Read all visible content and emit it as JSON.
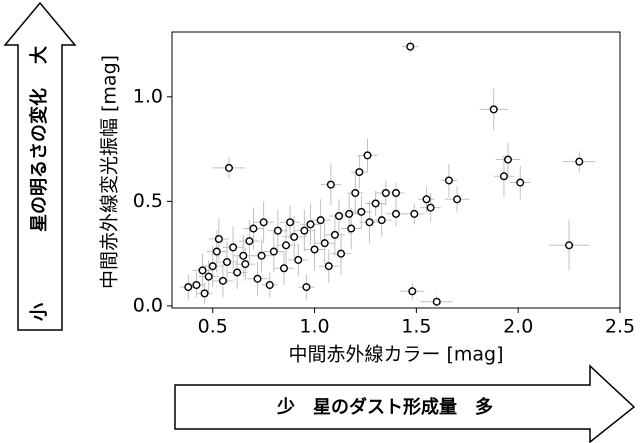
{
  "chart_data": {
    "type": "scatter",
    "y_label": "中間赤外線変光振幅 [mag]",
    "x_label": "中間赤外線カラー [mag]",
    "y_arrow": {
      "top": "大",
      "middle": "星の明るさの変化",
      "bottom": "小"
    },
    "x_arrow": "少　星のダスト形成量　多",
    "xlim": [
      0.3,
      2.5
    ],
    "ylim": [
      -0.01,
      1.31
    ],
    "xticks": [
      0.5,
      {
        "value": 1,
        "label": "1.0"
      },
      1.5,
      {
        "value": 2,
        "label": "2.0"
      },
      2.5
    ],
    "yticks": [
      {
        "value": 0,
        "label": "0.0"
      },
      0.5,
      {
        "value": 1,
        "label": "1.0"
      }
    ],
    "grid": false,
    "color": "#000000",
    "errcolor": "#c0c0c0",
    "x": [
      1.47,
      1.88,
      0.58,
      1.95,
      2.3,
      1.93,
      2.01,
      2.25,
      1.48,
      1.6,
      1.26,
      1.66,
      1.7,
      1.55,
      1.57,
      1.49,
      1.4,
      1.35,
      1.3,
      1.2,
      1.22,
      1.08,
      1.23,
      1.17,
      1.12,
      1.03,
      0.98,
      0.95,
      0.9,
      0.86,
      0.8,
      0.75,
      0.7,
      0.68,
      0.65,
      0.6,
      0.57,
      0.52,
      0.5,
      0.48,
      0.45,
      0.42,
      0.38,
      0.46,
      0.55,
      0.62,
      0.72,
      0.78,
      0.85,
      0.92,
      0.96,
      1.0,
      1.05,
      1.1,
      1.13,
      1.07,
      1.18,
      1.27,
      1.33,
      0.82,
      0.66,
      0.74,
      0.88,
      1.4,
      0.53
    ],
    "y": [
      1.24,
      0.94,
      0.66,
      0.7,
      0.69,
      0.62,
      0.59,
      0.29,
      0.07,
      0.02,
      0.72,
      0.6,
      0.51,
      0.51,
      0.47,
      0.44,
      0.54,
      0.54,
      0.49,
      0.54,
      0.64,
      0.58,
      0.45,
      0.44,
      0.43,
      0.41,
      0.39,
      0.36,
      0.33,
      0.29,
      0.26,
      0.4,
      0.37,
      0.31,
      0.24,
      0.28,
      0.21,
      0.26,
      0.19,
      0.14,
      0.17,
      0.1,
      0.09,
      0.06,
      0.12,
      0.16,
      0.13,
      0.1,
      0.18,
      0.22,
      0.09,
      0.27,
      0.3,
      0.34,
      0.25,
      0.19,
      0.37,
      0.4,
      0.41,
      0.36,
      0.2,
      0.24,
      0.4,
      0.44,
      0.32
    ],
    "xerr": [
      0.04,
      0.07,
      0.08,
      0.06,
      0.08,
      0.05,
      0.05,
      0.1,
      0.06,
      0.08,
      0.05,
      0.04,
      0.06,
      0.04,
      0.05,
      0.05,
      0.04,
      0.05,
      0.05,
      0.04,
      0.04,
      0.05,
      0.05,
      0.05,
      0.05,
      0.05,
      0.05,
      0.05,
      0.06,
      0.05,
      0.05,
      0.05,
      0.05,
      0.05,
      0.05,
      0.05,
      0.05,
      0.05,
      0.05,
      0.05,
      0.05,
      0.04,
      0.04,
      0.04,
      0.05,
      0.05,
      0.05,
      0.04,
      0.05,
      0.05,
      0.04,
      0.05,
      0.05,
      0.05,
      0.05,
      0.05,
      0.05,
      0.05,
      0.05,
      0.05,
      0.05,
      0.05,
      0.05,
      0.05,
      0.05
    ],
    "yerr": [
      0.03,
      0.1,
      0.05,
      0.08,
      0.05,
      0.1,
      0.08,
      0.12,
      0.04,
      0.03,
      0.08,
      0.08,
      0.06,
      0.06,
      0.07,
      0.05,
      0.05,
      0.06,
      0.06,
      0.1,
      0.08,
      0.1,
      0.08,
      0.1,
      0.08,
      0.1,
      0.1,
      0.1,
      0.1,
      0.1,
      0.1,
      0.1,
      0.1,
      0.1,
      0.1,
      0.1,
      0.1,
      0.1,
      0.1,
      0.08,
      0.08,
      0.06,
      0.06,
      0.05,
      0.08,
      0.08,
      0.08,
      0.06,
      0.08,
      0.08,
      0.06,
      0.1,
      0.1,
      0.1,
      0.1,
      0.08,
      0.1,
      0.1,
      0.08,
      0.1,
      0.08,
      0.08,
      0.08,
      0.06,
      0.1
    ]
  }
}
